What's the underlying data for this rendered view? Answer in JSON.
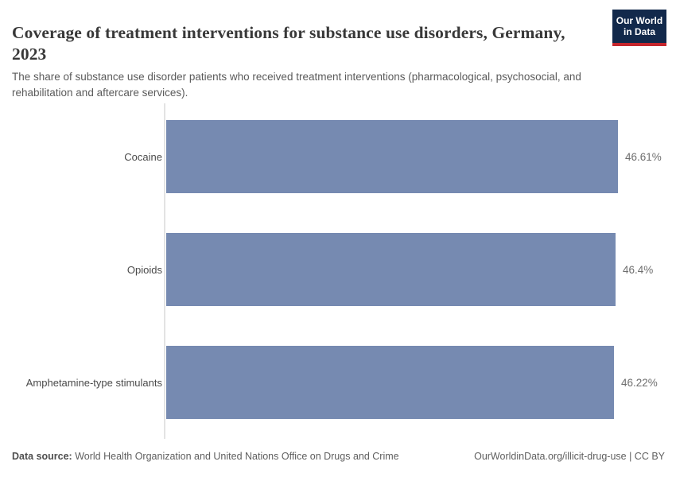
{
  "header": {
    "title": "Coverage of treatment interventions for substance use disorders, Germany, 2023",
    "subtitle": "The share of substance use disorder patients who received treatment interventions (pharmacological, psychosocial, and rehabilitation and aftercare services).",
    "logo_line1": "Our World",
    "logo_line2": "in Data"
  },
  "chart_data": {
    "type": "bar",
    "orientation": "horizontal",
    "title": "Coverage of treatment interventions for substance use disorders, Germany, 2023",
    "categories": [
      "Cocaine",
      "Opioids",
      "Amphetamine-type stimulants"
    ],
    "values": [
      46.61,
      46.4,
      46.22
    ],
    "value_labels": [
      "46.61%",
      "46.4%",
      "46.22%"
    ],
    "unit": "%",
    "xlabel": "",
    "ylabel": "",
    "grid": "off",
    "legend": "none",
    "bar_color": "#768ab1"
  },
  "footer": {
    "data_source_label": "Data source:",
    "data_source_value": "World Health Organization and United Nations Office on Drugs and Crime",
    "attribution": "OurWorldinData.org/illicit-drug-use | CC BY"
  },
  "colors": {
    "bar": "#768ab1",
    "logo_background": "#12294b",
    "logo_accent": "#c5262d",
    "title_text": "#383838",
    "subtitle_text": "#5b5b5b",
    "axis_line": "#e3e3e3"
  }
}
